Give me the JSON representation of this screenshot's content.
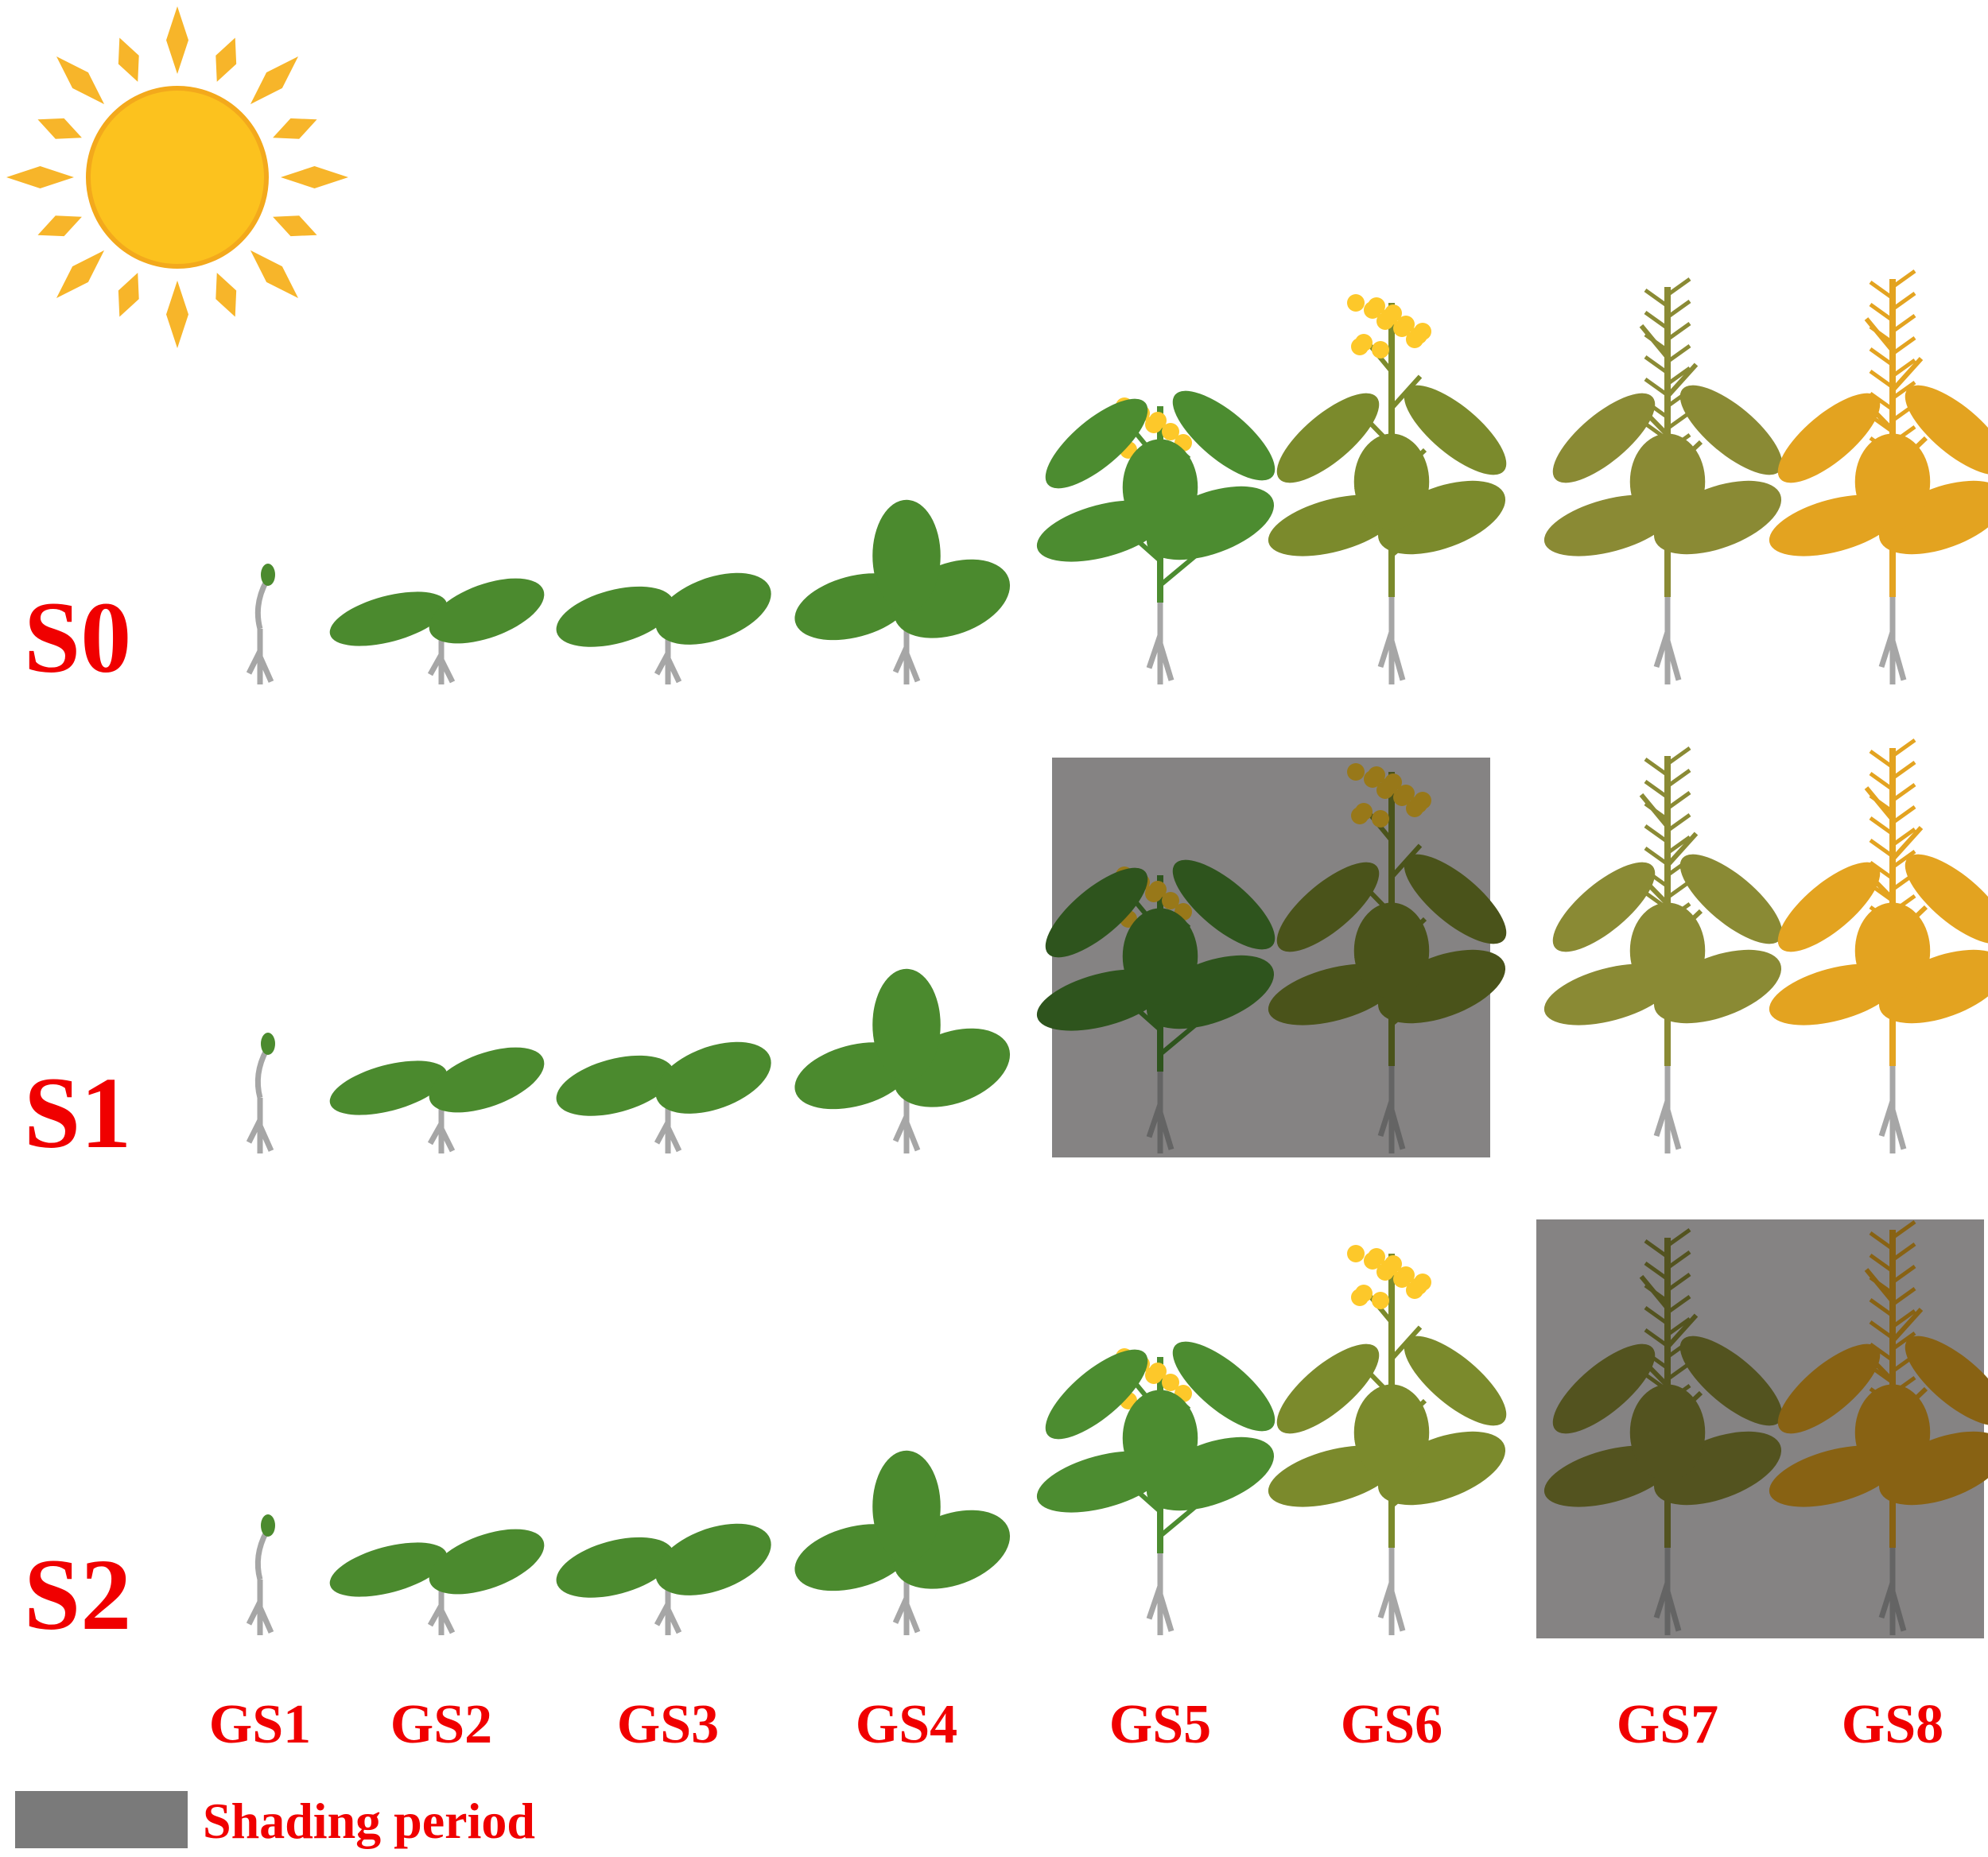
{
  "rows": [
    "S0",
    "S1",
    "S2"
  ],
  "stages": [
    "GS1",
    "GS2",
    "GS3",
    "GS4",
    "GS5",
    "GS6",
    "GS7",
    "GS8"
  ],
  "legend": {
    "label": "Shading period"
  }
}
